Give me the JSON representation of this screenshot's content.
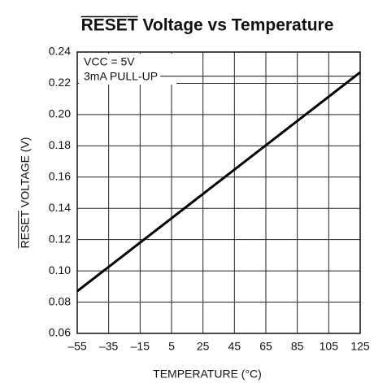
{
  "chart_data": {
    "type": "line",
    "title": "RESET Voltage vs Temperature",
    "xlabel": "TEMPERATURE (°C)",
    "ylabel": "RESET VOLTAGE (V)",
    "annotations": [
      "VCC = 5V",
      "3mA PULL-UP"
    ],
    "x": [
      -55,
      125
    ],
    "series": [
      {
        "color": "#000000",
        "values": [
          0.087,
          0.227
        ]
      }
    ],
    "xlim": [
      -55,
      125
    ],
    "ylim": [
      0.06,
      0.24
    ],
    "xticks": [
      {
        "value": -55,
        "label": "–55"
      },
      {
        "value": -35,
        "label": "–35"
      },
      {
        "value": -15,
        "label": "–15"
      },
      5,
      25,
      45,
      65,
      85,
      105,
      125
    ],
    "yticks": [
      0.06,
      0.08,
      {
        "value": 0.1,
        "label": "0.10"
      },
      0.12,
      0.14,
      0.16,
      0.18,
      {
        "value": 0.2,
        "label": "0.20"
      },
      0.22,
      0.24
    ],
    "grid": true
  }
}
